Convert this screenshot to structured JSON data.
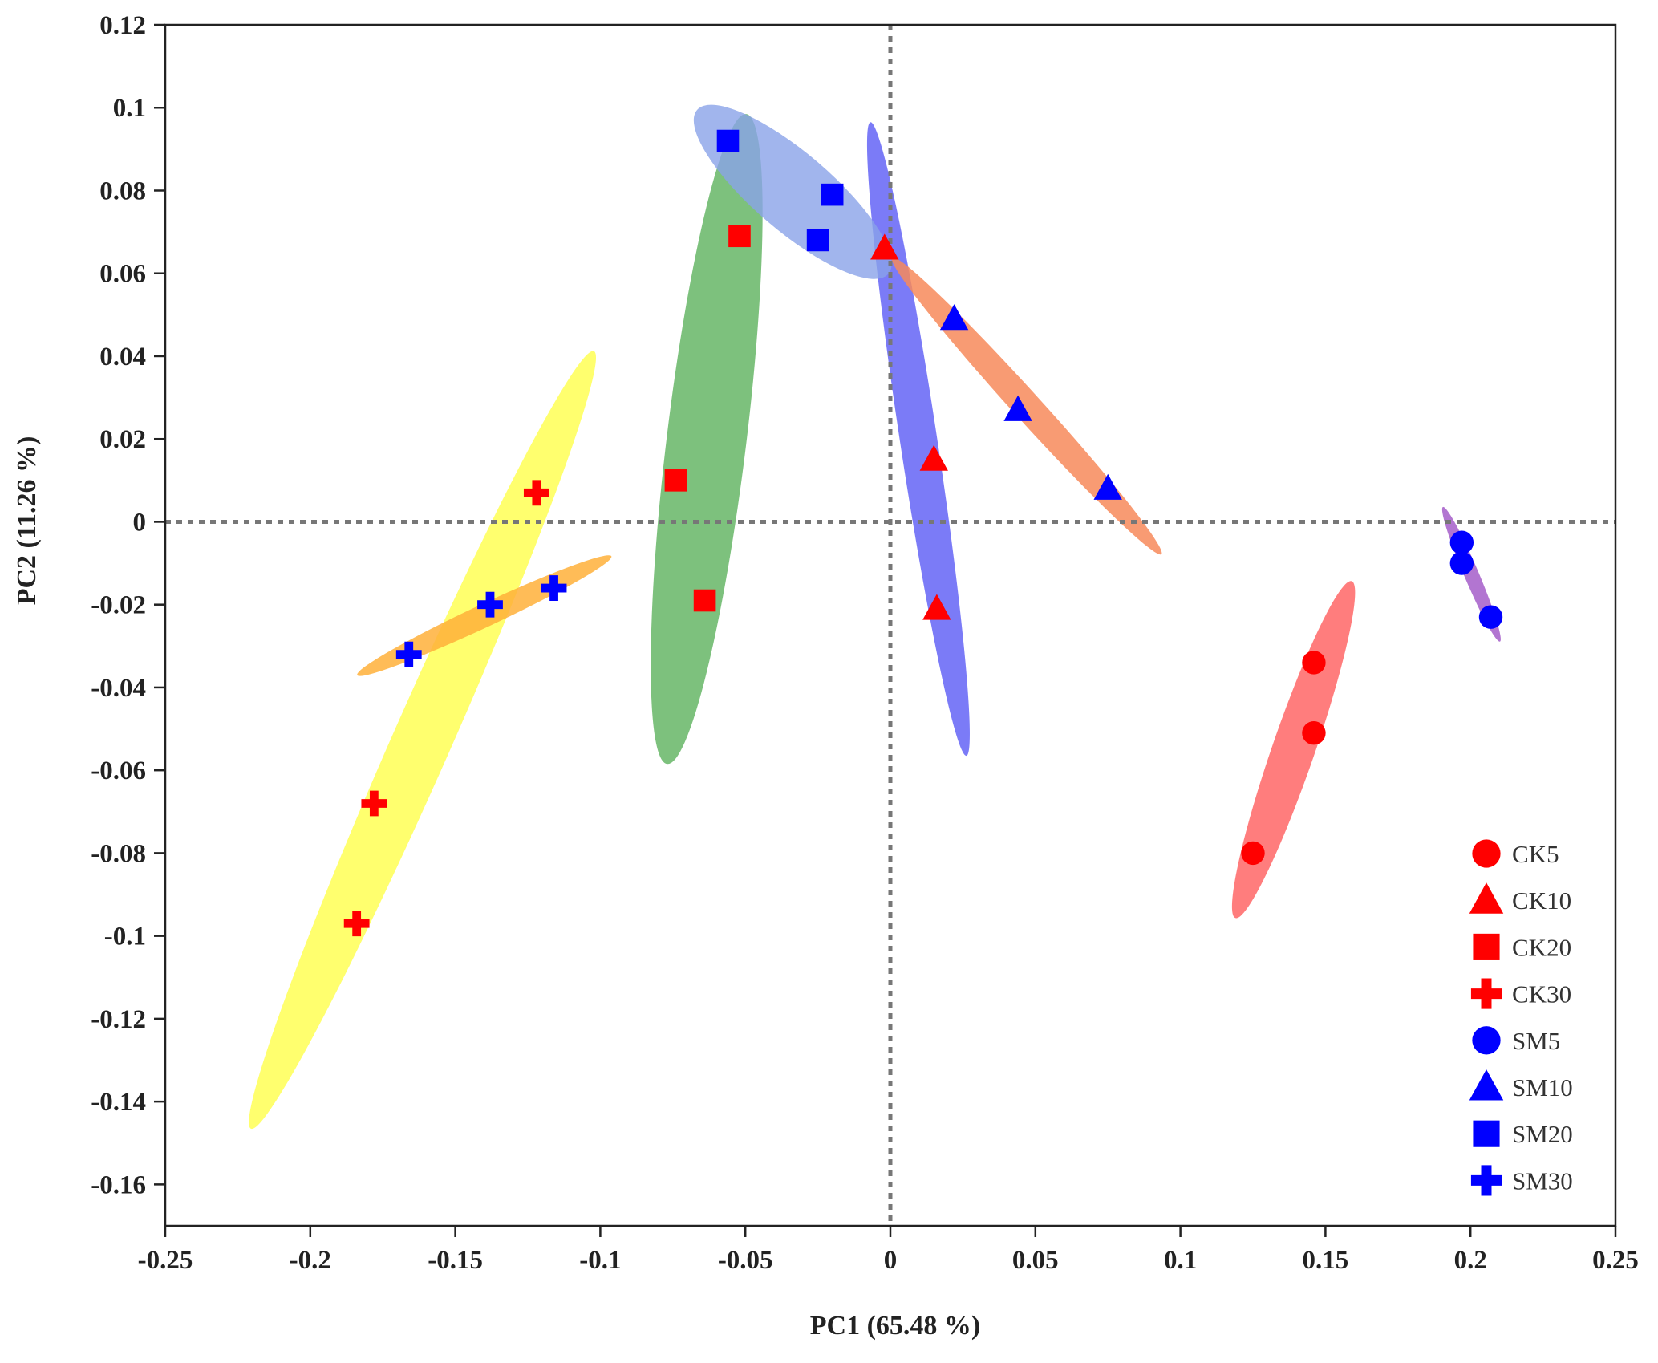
{
  "chart_data": {
    "type": "scatter",
    "xlabel": "PC1 (65.48 %)",
    "ylabel": "PC2 (11.26 %)",
    "xlim": [
      -0.25,
      0.25
    ],
    "ylim": [
      -0.17,
      0.12
    ],
    "x_ticks": [
      -0.25,
      -0.2,
      -0.15,
      -0.1,
      -0.05,
      0,
      0.05,
      0.1,
      0.15,
      0.2,
      0.25
    ],
    "x_tick_labels": [
      "-0.25",
      "-0.2",
      "-0.15",
      "-0.1",
      "-0.05",
      "0",
      "0.05",
      "0.1",
      "0.15",
      "0.2",
      "0.25"
    ],
    "y_ticks": [
      0.12,
      0.1,
      0.08,
      0.06,
      0.04,
      0.02,
      0,
      -0.02,
      -0.04,
      -0.06,
      -0.08,
      -0.1,
      -0.12,
      -0.14,
      -0.16
    ],
    "y_tick_labels": [
      "0.12",
      "0.1",
      "0.08",
      "0.06",
      "0.04",
      "0.02",
      "0",
      "-0.02",
      "-0.04",
      "-0.06",
      "-0.08",
      "-0.1",
      "-0.12",
      "-0.14",
      "-0.16"
    ],
    "reference_lines": {
      "x": 0,
      "y": 0,
      "style": "dotted",
      "color": "#777777"
    },
    "grid": false,
    "legend_position": "bottom-right",
    "series": [
      {
        "name": "CK5",
        "marker": "circle",
        "color": "#ff0000",
        "points": [
          [
            0.146,
            -0.034
          ],
          [
            0.146,
            -0.051
          ],
          [
            0.125,
            -0.08
          ]
        ],
        "ellipse": {
          "color": "#ff6666",
          "opacity": 0.85
        }
      },
      {
        "name": "CK10",
        "marker": "triangle",
        "color": "#ff0000",
        "points": [
          [
            -0.002,
            0.066
          ],
          [
            0.015,
            0.015
          ],
          [
            0.016,
            -0.021
          ]
        ],
        "ellipse": {
          "color": "#5a5af5",
          "opacity": 0.8
        }
      },
      {
        "name": "CK20",
        "marker": "square",
        "color": "#ff0000",
        "points": [
          [
            -0.052,
            0.069
          ],
          [
            -0.074,
            0.01
          ],
          [
            -0.064,
            -0.019
          ]
        ],
        "ellipse": {
          "color": "#59b059",
          "opacity": 0.78
        }
      },
      {
        "name": "CK30",
        "marker": "cross",
        "color": "#ff0000",
        "points": [
          [
            -0.122,
            0.007
          ],
          [
            -0.178,
            -0.068
          ],
          [
            -0.184,
            -0.097
          ]
        ],
        "ellipse": {
          "color": "#ffff55",
          "opacity": 0.85
        }
      },
      {
        "name": "SM5",
        "marker": "circle",
        "color": "#0000ff",
        "points": [
          [
            0.197,
            -0.005
          ],
          [
            0.197,
            -0.01
          ],
          [
            0.207,
            -0.023
          ]
        ],
        "ellipse": {
          "color": "#aa66cc",
          "opacity": 0.9
        }
      },
      {
        "name": "SM10",
        "marker": "triangle",
        "color": "#0000ff",
        "points": [
          [
            0.022,
            0.049
          ],
          [
            0.044,
            0.027
          ],
          [
            0.075,
            0.008
          ]
        ],
        "ellipse": {
          "color": "#f78a5a",
          "opacity": 0.85
        }
      },
      {
        "name": "SM20",
        "marker": "square",
        "color": "#0000ff",
        "points": [
          [
            -0.056,
            0.092
          ],
          [
            -0.02,
            0.079
          ],
          [
            -0.025,
            0.068
          ]
        ],
        "ellipse": {
          "color": "#8aa3e8",
          "opacity": 0.8
        }
      },
      {
        "name": "SM30",
        "marker": "cross",
        "color": "#0000ff",
        "points": [
          [
            -0.116,
            -0.016
          ],
          [
            -0.138,
            -0.02
          ],
          [
            -0.166,
            -0.032
          ]
        ],
        "ellipse": {
          "color": "#ffb03a",
          "opacity": 0.85
        }
      }
    ]
  }
}
